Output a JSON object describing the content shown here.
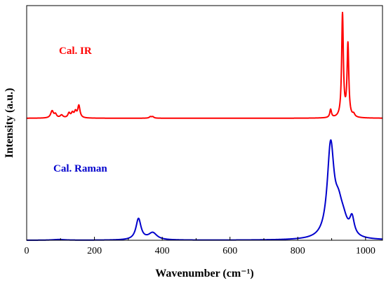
{
  "chart_data": {
    "type": "line",
    "xlabel": "Wavenumber (cm⁻¹)",
    "ylabel": "Intensity (a.u.)",
    "xlim": [
      0,
      1050
    ],
    "ylim": [
      0,
      1
    ],
    "x_ticks": [
      0,
      200,
      400,
      600,
      800,
      1000
    ],
    "y_ticks": [],
    "grid": false,
    "legend": "none",
    "series": [
      {
        "name": "Cal. IR",
        "color": "#ff0000",
        "baseline": 0.52,
        "peaks": [
          {
            "center": 75,
            "height": 0.03,
            "width": 5
          },
          {
            "center": 85,
            "height": 0.015,
            "width": 4
          },
          {
            "center": 103,
            "height": 0.012,
            "width": 5
          },
          {
            "center": 125,
            "height": 0.02,
            "width": 4
          },
          {
            "center": 135,
            "height": 0.02,
            "width": 4
          },
          {
            "center": 144,
            "height": 0.025,
            "width": 4
          },
          {
            "center": 154,
            "height": 0.052,
            "width": 4
          },
          {
            "center": 365,
            "height": 0.006,
            "width": 4
          },
          {
            "center": 372,
            "height": 0.006,
            "width": 4
          },
          {
            "center": 897,
            "height": 0.035,
            "width": 3
          },
          {
            "center": 932,
            "height": 0.44,
            "width": 3
          },
          {
            "center": 948,
            "height": 0.31,
            "width": 3
          },
          {
            "center": 965,
            "height": 0.012,
            "width": 4
          }
        ]
      },
      {
        "name": "Cal. Raman",
        "color": "#0000cc",
        "baseline": 0.0,
        "peaks": [
          {
            "center": 95,
            "height": 0.003,
            "width": 20
          },
          {
            "center": 330,
            "height": 0.09,
            "width": 9
          },
          {
            "center": 372,
            "height": 0.03,
            "width": 15
          },
          {
            "center": 897,
            "height": 0.39,
            "width": 12
          },
          {
            "center": 920,
            "height": 0.11,
            "width": 14
          },
          {
            "center": 935,
            "height": 0.05,
            "width": 14
          },
          {
            "center": 960,
            "height": 0.075,
            "width": 8
          }
        ]
      }
    ]
  }
}
